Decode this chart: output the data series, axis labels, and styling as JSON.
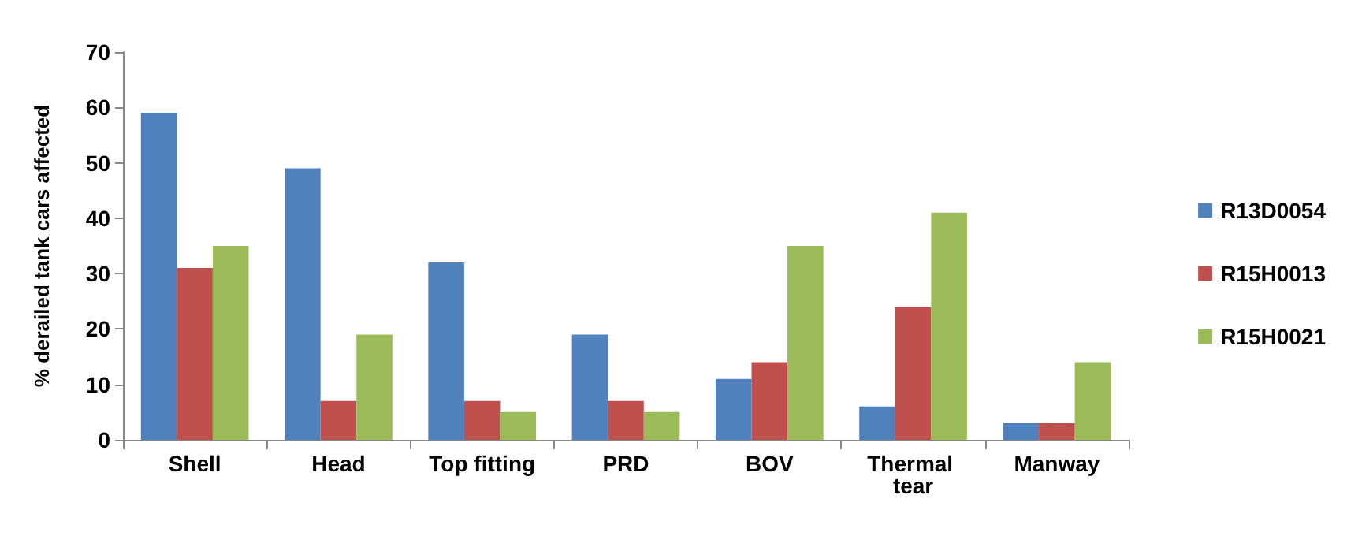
{
  "chart_data": {
    "type": "bar",
    "ylabel": "% derailed tank cars affected",
    "categories": [
      "Shell",
      "Head",
      "Top fitting",
      "PRD",
      "BOV",
      "Thermal tear",
      "Manway"
    ],
    "series": [
      {
        "name": "R13D0054",
        "color": "#4f81bd",
        "values": [
          59,
          49,
          32,
          19,
          11,
          6,
          3
        ]
      },
      {
        "name": "R15H0013",
        "color": "#c0504d",
        "values": [
          31,
          7,
          7,
          7,
          14,
          24,
          3
        ]
      },
      {
        "name": "R15H0021",
        "color": "#9bbb59",
        "values": [
          35,
          19,
          5,
          5,
          35,
          41,
          14
        ]
      }
    ],
    "ylim": [
      0,
      70
    ],
    "yticks": [
      0,
      10,
      20,
      30,
      40,
      50,
      60,
      70
    ],
    "grid": false,
    "legend": "right"
  }
}
